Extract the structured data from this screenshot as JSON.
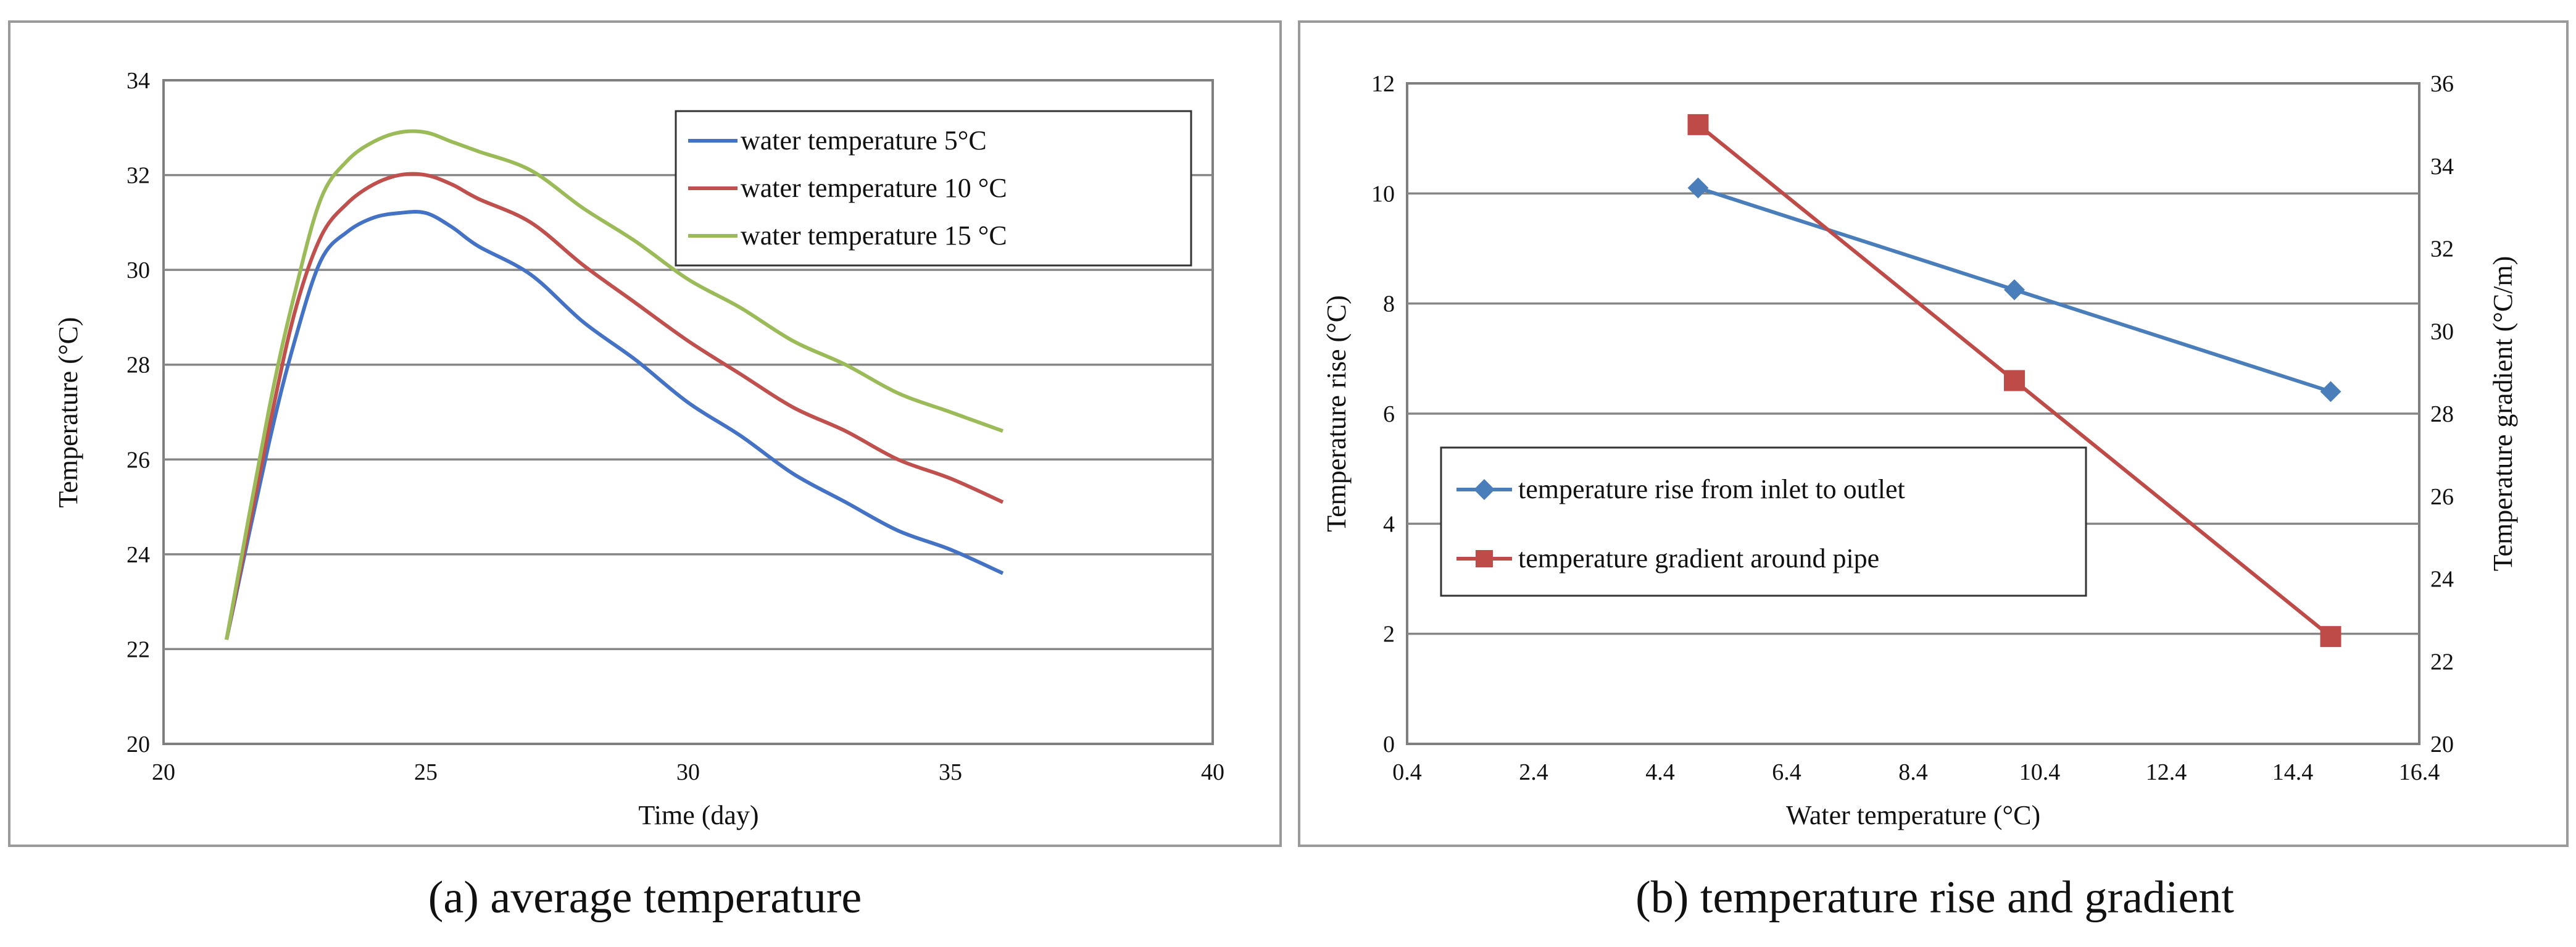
{
  "chart_data": [
    {
      "type": "line",
      "caption": "(a) average temperature",
      "xlabel": "Time (day)",
      "ylabel": "Temperature (°C)",
      "xlim": [
        20,
        40
      ],
      "ylim": [
        20,
        34
      ],
      "xticks": [
        20,
        25,
        30,
        35,
        40
      ],
      "yticks": [
        20,
        22,
        24,
        26,
        28,
        30,
        32,
        34
      ],
      "grid": "horizontal",
      "legend_position": "top-right",
      "series": [
        {
          "name": "water temperature 5°C",
          "color": "#4472c4",
          "x": [
            21.2,
            22,
            22.5,
            23,
            23.5,
            24,
            24.5,
            25,
            25.5,
            26,
            27,
            28,
            29,
            30,
            31,
            32,
            33,
            34,
            35,
            36
          ],
          "y": [
            22.2,
            26.3,
            28.5,
            30.2,
            30.8,
            31.1,
            31.2,
            31.2,
            30.9,
            30.5,
            29.9,
            28.9,
            28.1,
            27.2,
            26.5,
            25.7,
            25.1,
            24.5,
            24.1,
            23.6
          ]
        },
        {
          "name": "water temperature 10 °C",
          "color": "#c0504d",
          "x": [
            21.2,
            22,
            22.5,
            23,
            23.5,
            24,
            24.5,
            25,
            25.5,
            26,
            27,
            28,
            29,
            30,
            31,
            32,
            33,
            34,
            35,
            36
          ],
          "y": [
            22.2,
            26.6,
            29.1,
            30.7,
            31.4,
            31.8,
            32.0,
            32.0,
            31.8,
            31.5,
            31.0,
            30.1,
            29.3,
            28.5,
            27.8,
            27.1,
            26.6,
            26.0,
            25.6,
            25.1
          ]
        },
        {
          "name": "water temperature 15 °C",
          "color": "#9bbb59",
          "x": [
            21.2,
            22,
            22.5,
            23,
            23.5,
            24,
            24.5,
            25,
            25.5,
            26,
            27,
            28,
            29,
            30,
            31,
            32,
            33,
            34,
            35,
            36
          ],
          "y": [
            22.2,
            27.0,
            29.5,
            31.5,
            32.3,
            32.7,
            32.9,
            32.9,
            32.7,
            32.5,
            32.1,
            31.3,
            30.6,
            29.8,
            29.2,
            28.5,
            28.0,
            27.4,
            27.0,
            26.6
          ]
        }
      ]
    },
    {
      "type": "line",
      "caption": "(b) temperature rise and gradient",
      "xlabel": "Water temperature (°C)",
      "ylabel": "Temperature rise (°C)",
      "ylabel_right": "Temperature gradient (°C/m)",
      "xlim": [
        0.4,
        16.4
      ],
      "ylim": [
        0,
        12
      ],
      "ylim_right": [
        20,
        36
      ],
      "xticks": [
        "0.4",
        "2.4",
        "4.4",
        "6.4",
        "8.4",
        "10.4",
        "12.4",
        "14.4",
        "16.4"
      ],
      "yticks": [
        0,
        2,
        4,
        6,
        8,
        10,
        12
      ],
      "yticks_right": [
        20,
        22,
        24,
        26,
        28,
        30,
        32,
        34,
        36
      ],
      "grid": "horizontal",
      "legend_position": "lower-left",
      "series": [
        {
          "name": "temperature rise from inlet to outlet",
          "color": "#4a7ebb",
          "marker": "diamond",
          "axis": "left",
          "x": [
            5,
            10,
            15
          ],
          "y": [
            10.1,
            8.25,
            6.4
          ]
        },
        {
          "name": "temperature gradient around pipe",
          "color": "#be4b48",
          "marker": "square",
          "axis": "right",
          "x": [
            5,
            10,
            15
          ],
          "y": [
            35.0,
            28.8,
            22.6
          ]
        }
      ]
    }
  ]
}
